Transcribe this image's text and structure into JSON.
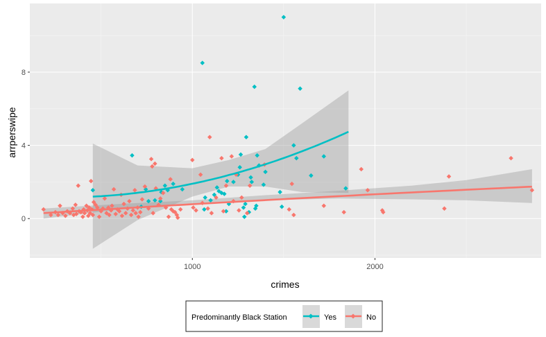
{
  "chart_data": {
    "type": "scatter",
    "title": "",
    "xlabel": "crimes",
    "ylabel": "arrperswipe",
    "xlim": [
      110,
      2910
    ],
    "ylim": [
      -2.15,
      11.75
    ],
    "x_ticks": [
      1000,
      2000
    ],
    "x_tick_labels": [
      "1000",
      "2000"
    ],
    "y_ticks": [
      0,
      4,
      8
    ],
    "y_tick_labels": [
      "0",
      "4",
      "8"
    ],
    "grid": true,
    "legend": {
      "title": "Predominantly Black Station",
      "placement": "bottom",
      "entries": [
        "Yes",
        "No"
      ]
    },
    "colors": {
      "Yes": "#00BFC4",
      "No": "#F8766D",
      "band": "#999999",
      "panel": "#EBEBEB"
    },
    "series": [
      {
        "name": "Yes",
        "color": "#00BFC4",
        "points": [
          [
            455,
            1.55
          ],
          [
            670,
            3.45
          ],
          [
            720,
            0.65
          ],
          [
            745,
            1.6
          ],
          [
            760,
            0.95
          ],
          [
            795,
            1.0
          ],
          [
            825,
            0.95
          ],
          [
            830,
            1.45
          ],
          [
            850,
            1.8
          ],
          [
            865,
            1.55
          ],
          [
            895,
            1.9
          ],
          [
            945,
            1.6
          ],
          [
            1055,
            8.5
          ],
          [
            1065,
            0.5
          ],
          [
            1070,
            1.15
          ],
          [
            1100,
            1.0
          ],
          [
            1120,
            1.3
          ],
          [
            1135,
            1.7
          ],
          [
            1145,
            1.5
          ],
          [
            1160,
            1.4
          ],
          [
            1175,
            1.35
          ],
          [
            1185,
            0.4
          ],
          [
            1190,
            2.05
          ],
          [
            1200,
            0.8
          ],
          [
            1225,
            2.0
          ],
          [
            1250,
            2.4
          ],
          [
            1260,
            2.8
          ],
          [
            1265,
            3.5
          ],
          [
            1280,
            0.6
          ],
          [
            1285,
            0.1
          ],
          [
            1290,
            0.8
          ],
          [
            1295,
            4.45
          ],
          [
            1310,
            0.35
          ],
          [
            1320,
            2.25
          ],
          [
            1325,
            2.0
          ],
          [
            1340,
            7.2
          ],
          [
            1345,
            0.55
          ],
          [
            1350,
            0.7
          ],
          [
            1355,
            3.45
          ],
          [
            1365,
            2.9
          ],
          [
            1390,
            1.85
          ],
          [
            1400,
            2.55
          ],
          [
            1480,
            1.45
          ],
          [
            1490,
            0.65
          ],
          [
            1500,
            11.0
          ],
          [
            1555,
            4.0
          ],
          [
            1570,
            3.3
          ],
          [
            1590,
            7.1
          ],
          [
            1650,
            2.35
          ],
          [
            1720,
            3.4
          ],
          [
            1840,
            1.65
          ]
        ],
        "fit_x": [
          455,
          1855
        ],
        "fit_coef": [
          1.2,
          0.0005,
          1.45e-06
        ],
        "ci_x": [
          455,
          700,
          1000,
          1200,
          1400,
          1600,
          1855
        ],
        "ci_lo": [
          -1.65,
          -0.08,
          1.2,
          1.75,
          1.75,
          1.45,
          1.4
        ],
        "ci_hi": [
          4.1,
          2.9,
          2.75,
          3.2,
          3.8,
          5.2,
          7.0
        ]
      },
      {
        "name": "No",
        "color": "#F8766D",
        "points": [
          [
            185,
            0.5
          ],
          [
            225,
            0.2
          ],
          [
            250,
            0.35
          ],
          [
            265,
            0.2
          ],
          [
            275,
            0.7
          ],
          [
            290,
            0.3
          ],
          [
            305,
            0.15
          ],
          [
            315,
            0.4
          ],
          [
            330,
            0.3
          ],
          [
            345,
            0.55
          ],
          [
            350,
            0.2
          ],
          [
            360,
            0.75
          ],
          [
            365,
            0.25
          ],
          [
            375,
            1.8
          ],
          [
            380,
            0.4
          ],
          [
            390,
            0.35
          ],
          [
            400,
            0.1
          ],
          [
            405,
            0.5
          ],
          [
            410,
            0.3
          ],
          [
            420,
            0.7
          ],
          [
            425,
            0.45
          ],
          [
            430,
            0.15
          ],
          [
            435,
            0.6
          ],
          [
            440,
            0.3
          ],
          [
            445,
            2.05
          ],
          [
            450,
            0.5
          ],
          [
            455,
            0.2
          ],
          [
            460,
            0.9
          ],
          [
            470,
            0.75
          ],
          [
            480,
            0.6
          ],
          [
            490,
            0.1
          ],
          [
            500,
            0.4
          ],
          [
            510,
            0.55
          ],
          [
            520,
            1.1
          ],
          [
            530,
            0.3
          ],
          [
            540,
            0.6
          ],
          [
            545,
            0.2
          ],
          [
            555,
            0.45
          ],
          [
            560,
            0.7
          ],
          [
            570,
            1.6
          ],
          [
            580,
            0.25
          ],
          [
            590,
            0.5
          ],
          [
            600,
            0.4
          ],
          [
            610,
            1.3
          ],
          [
            615,
            0.15
          ],
          [
            625,
            0.8
          ],
          [
            635,
            0.3
          ],
          [
            645,
            0.55
          ],
          [
            655,
            0.95
          ],
          [
            665,
            0.2
          ],
          [
            675,
            0.45
          ],
          [
            685,
            1.55
          ],
          [
            690,
            0.3
          ],
          [
            700,
            0.6
          ],
          [
            705,
            0.1
          ],
          [
            715,
            0.35
          ],
          [
            725,
            1.05
          ],
          [
            740,
            1.75
          ],
          [
            760,
            0.55
          ],
          [
            775,
            3.25
          ],
          [
            780,
            2.85
          ],
          [
            785,
            0.3
          ],
          [
            795,
            3.0
          ],
          [
            800,
            1.65
          ],
          [
            815,
            0.75
          ],
          [
            825,
            1.1
          ],
          [
            840,
            1.4
          ],
          [
            855,
            0.6
          ],
          [
            870,
            0.1
          ],
          [
            880,
            2.15
          ],
          [
            885,
            0.5
          ],
          [
            895,
            0.4
          ],
          [
            905,
            0.35
          ],
          [
            915,
            0.2
          ],
          [
            920,
            0.05
          ],
          [
            935,
            0.5
          ],
          [
            1000,
            3.2
          ],
          [
            1005,
            0.6
          ],
          [
            1020,
            0.45
          ],
          [
            1045,
            2.4
          ],
          [
            1055,
            0.85
          ],
          [
            1085,
            0.55
          ],
          [
            1095,
            4.45
          ],
          [
            1105,
            0.3
          ],
          [
            1130,
            1.15
          ],
          [
            1160,
            3.3
          ],
          [
            1170,
            0.4
          ],
          [
            1185,
            1.8
          ],
          [
            1215,
            3.4
          ],
          [
            1225,
            0.95
          ],
          [
            1240,
            2.4
          ],
          [
            1255,
            0.45
          ],
          [
            1270,
            1.15
          ],
          [
            1300,
            0.3
          ],
          [
            1315,
            1.8
          ],
          [
            1395,
            2.95
          ],
          [
            1530,
            0.5
          ],
          [
            1545,
            1.9
          ],
          [
            1555,
            0.2
          ],
          [
            1720,
            0.7
          ],
          [
            1830,
            0.35
          ],
          [
            1925,
            2.7
          ],
          [
            1960,
            1.55
          ],
          [
            2040,
            0.45
          ],
          [
            2045,
            0.35
          ],
          [
            2380,
            0.55
          ],
          [
            2405,
            2.3
          ],
          [
            2745,
            3.3
          ],
          [
            2860,
            1.55
          ]
        ],
        "fit_x": [
          185,
          2860
        ],
        "fit_coef": [
          0.3,
          0.00062,
          -3e-08
        ],
        "ci_x": [
          185,
          600,
          1000,
          1400,
          1800,
          2200,
          2500,
          2860
        ],
        "ci_lo": [
          0.0,
          0.5,
          0.75,
          1.0,
          1.1,
          1.05,
          1.0,
          0.85
        ],
        "ci_hi": [
          0.55,
          0.8,
          1.0,
          1.28,
          1.52,
          1.8,
          2.1,
          2.7
        ]
      }
    ]
  }
}
